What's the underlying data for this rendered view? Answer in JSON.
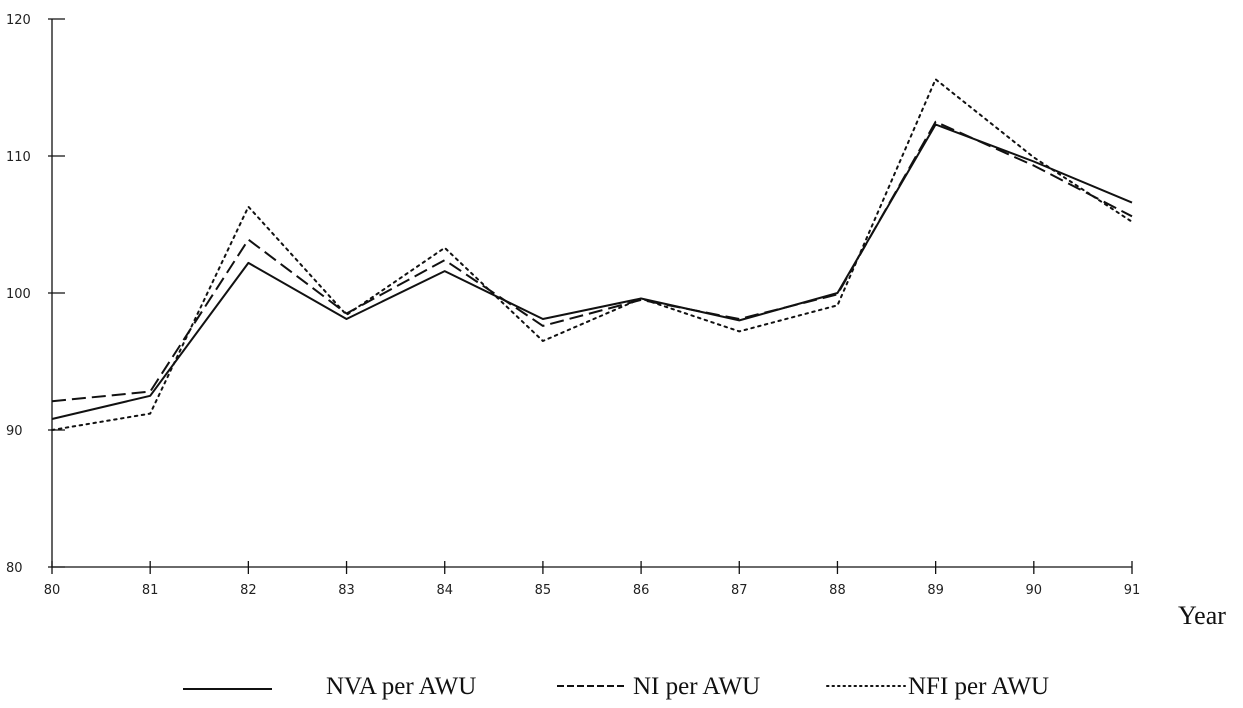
{
  "chart_data": {
    "type": "line",
    "title": "",
    "xlabel": "Year",
    "ylabel": "",
    "x": [
      "80",
      "81",
      "82",
      "83",
      "84",
      "85",
      "86",
      "87",
      "88",
      "89",
      "90",
      "91"
    ],
    "yticks": [
      "80",
      "90",
      "100",
      "110",
      "120"
    ],
    "ylim": [
      80,
      120
    ],
    "grid": false,
    "legend": "bottom",
    "series": [
      {
        "name": "NVA per AWU",
        "style": "solid",
        "values": [
          90.8,
          92.5,
          102.2,
          98.1,
          101.6,
          98.1,
          99.6,
          98.0,
          100.0,
          112.3,
          109.6,
          106.6
        ]
      },
      {
        "name": "NI per AWU",
        "style": "dashed",
        "values": [
          92.1,
          92.8,
          103.9,
          98.5,
          102.4,
          97.6,
          99.5,
          98.1,
          99.9,
          112.5,
          109.3,
          105.6
        ]
      },
      {
        "name": "NFI per AWU",
        "style": "dotted",
        "values": [
          90.0,
          91.2,
          106.3,
          98.4,
          103.3,
          96.5,
          99.6,
          97.2,
          99.1,
          115.6,
          109.9,
          105.2
        ]
      }
    ]
  }
}
